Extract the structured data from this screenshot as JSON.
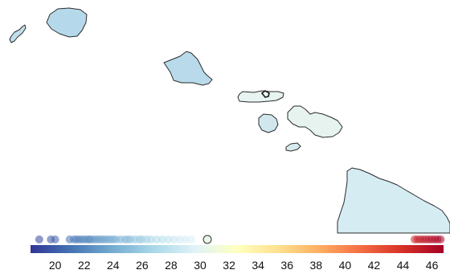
{
  "map": {
    "islands": [
      {
        "name": "Niihau",
        "fill": "#bfdfec"
      },
      {
        "name": "Kauai",
        "fill": "#b5d9ea"
      },
      {
        "name": "Oahu",
        "fill": "#b8daea"
      },
      {
        "name": "Molokai",
        "fill": "#e8f4f1"
      },
      {
        "name": "Lanai",
        "fill": "#d0e7ee"
      },
      {
        "name": "Maui",
        "fill": "#e6f3ef"
      },
      {
        "name": "Kahoolawe",
        "fill": "#d7ebef"
      },
      {
        "name": "Hawaii",
        "fill": "#d6ecf3"
      }
    ]
  },
  "legend": {
    "min": 18.3,
    "max": 46.8,
    "ticks": [
      "20",
      "22",
      "24",
      "26",
      "28",
      "30",
      "32",
      "34",
      "36",
      "38",
      "40",
      "42",
      "44",
      "46"
    ],
    "tick_values": [
      20,
      22,
      24,
      26,
      28,
      30,
      32,
      34,
      36,
      38,
      40,
      42,
      44,
      46
    ],
    "colors": [
      "#313695",
      "#4575b4",
      "#74add1",
      "#abd9e9",
      "#e0f3f8",
      "#ffffbf",
      "#fee090",
      "#fdae61",
      "#f46d43",
      "#d73027",
      "#a50026"
    ],
    "highlight_value": 30.5,
    "samples": [
      18.9,
      19.7,
      20.0,
      21.0,
      21.3,
      21.5,
      21.7,
      21.9,
      22.1,
      22.3,
      22.4,
      22.6,
      22.8,
      23.0,
      23.2,
      23.4,
      23.6,
      23.8,
      24.0,
      24.2,
      24.5,
      24.8,
      25.0,
      25.2,
      25.5,
      25.8,
      26.0,
      26.3,
      26.6,
      27.0,
      27.4,
      27.8,
      28.2,
      28.6,
      29.0,
      29.4,
      44.8,
      45.0,
      45.2,
      45.4,
      45.6,
      45.8,
      46.0,
      46.2,
      46.4,
      46.6
    ]
  }
}
